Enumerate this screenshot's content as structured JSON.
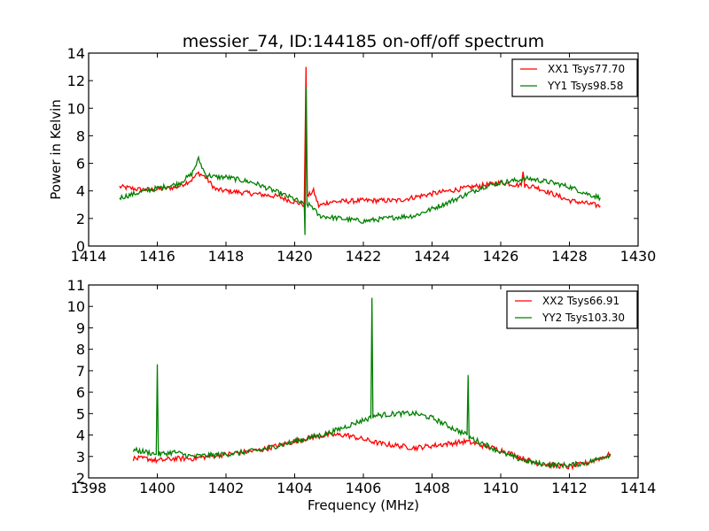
{
  "chart_data": [
    {
      "type": "line",
      "title": "messier_74, ID:144185 on-off/off spectrum",
      "xlabel": "",
      "ylabel": "Power in Kelvin",
      "xlim": [
        1414,
        1430
      ],
      "ylim": [
        0,
        14
      ],
      "xticks": [
        1414,
        1416,
        1418,
        1420,
        1422,
        1424,
        1426,
        1428,
        1430
      ],
      "yticks": [
        0,
        2,
        4,
        6,
        8,
        10,
        12,
        14
      ],
      "xtick_labels": [
        "1414",
        "1416",
        "1418",
        "1420",
        "1422",
        "1424",
        "1426",
        "1428",
        "1430"
      ],
      "ytick_labels": [
        "0",
        "2",
        "4",
        "6",
        "8",
        "10",
        "12",
        "14"
      ],
      "grid": false,
      "legend_position": "top-right",
      "series": [
        {
          "name": "XX1 Tsys77.70",
          "color": "#ff0000",
          "x": [
            1414.9,
            1415.5,
            1416.0,
            1416.6,
            1417.0,
            1417.2,
            1417.4,
            1417.7,
            1418.0,
            1418.8,
            1419.5,
            1420.0,
            1420.28,
            1420.33,
            1420.37,
            1420.55,
            1420.7,
            1421.0,
            1422.0,
            1423.0,
            1424.0,
            1424.5,
            1425.2,
            1426.0,
            1426.6,
            1426.65,
            1426.7,
            1427.0,
            1427.5,
            1428.0,
            1428.5,
            1428.9
          ],
          "y": [
            4.3,
            4.1,
            4.1,
            4.3,
            4.8,
            5.3,
            5.0,
            4.1,
            4.0,
            3.8,
            3.6,
            3.2,
            3.0,
            13.0,
            3.6,
            4.0,
            2.9,
            3.2,
            3.3,
            3.3,
            3.8,
            4.0,
            4.3,
            4.6,
            4.4,
            5.4,
            4.4,
            4.3,
            3.8,
            3.3,
            3.1,
            2.9
          ]
        },
        {
          "name": "YY1 Tsys98.58",
          "color": "#008000",
          "x": [
            1414.9,
            1415.5,
            1416.0,
            1416.6,
            1417.0,
            1417.2,
            1417.4,
            1417.7,
            1418.0,
            1418.8,
            1419.5,
            1420.0,
            1420.28,
            1420.3,
            1420.33,
            1420.36,
            1420.5,
            1420.7,
            1421.0,
            1422.0,
            1423.0,
            1423.5,
            1424.5,
            1425.5,
            1426.0,
            1426.8,
            1427.5,
            1428.0,
            1428.5,
            1428.9
          ],
          "y": [
            3.5,
            3.9,
            4.2,
            4.5,
            5.2,
            6.3,
            5.2,
            5.0,
            5.0,
            4.6,
            3.9,
            3.4,
            3.0,
            0.8,
            11.5,
            3.0,
            2.9,
            2.2,
            2.1,
            1.8,
            2.1,
            2.2,
            3.2,
            4.3,
            4.6,
            4.9,
            4.6,
            4.3,
            3.8,
            3.5
          ]
        }
      ]
    },
    {
      "type": "line",
      "title": "",
      "xlabel": "Frequency (MHz)",
      "ylabel": "",
      "xlim": [
        1398,
        1414
      ],
      "ylim": [
        2,
        11
      ],
      "xticks": [
        1398,
        1400,
        1402,
        1404,
        1406,
        1408,
        1410,
        1412,
        1414
      ],
      "yticks": [
        2,
        3,
        4,
        5,
        6,
        7,
        8,
        9,
        10,
        11
      ],
      "xtick_labels": [
        "1398",
        "1400",
        "1402",
        "1404",
        "1406",
        "1408",
        "1410",
        "1412",
        "1414"
      ],
      "ytick_labels": [
        "2",
        "3",
        "4",
        "5",
        "6",
        "7",
        "8",
        "9",
        "10",
        "11"
      ],
      "grid": false,
      "legend_position": "top-right",
      "series": [
        {
          "name": "XX2 Tsys66.91",
          "color": "#ff0000",
          "x": [
            1399.3,
            1399.7,
            1400.0,
            1400.5,
            1401.0,
            1401.5,
            1402.0,
            1403.0,
            1404.0,
            1404.5,
            1405.0,
            1405.5,
            1406.0,
            1406.5,
            1407.0,
            1407.5,
            1408.0,
            1408.5,
            1409.0,
            1409.5,
            1410.0,
            1410.5,
            1411.0,
            1411.5,
            1412.0,
            1412.5,
            1413.2
          ],
          "y": [
            2.9,
            2.9,
            2.8,
            2.9,
            2.9,
            3.0,
            3.1,
            3.3,
            3.7,
            3.9,
            4.0,
            4.0,
            3.8,
            3.6,
            3.5,
            3.4,
            3.5,
            3.6,
            3.7,
            3.5,
            3.3,
            3.0,
            2.7,
            2.6,
            2.5,
            2.7,
            3.1
          ]
        },
        {
          "name": "YY2 Tsys103.30",
          "color": "#008000",
          "x": [
            1399.3,
            1399.7,
            1399.97,
            1400.0,
            1400.03,
            1400.5,
            1401.0,
            1402.0,
            1403.0,
            1404.0,
            1404.5,
            1405.0,
            1405.5,
            1406.0,
            1406.22,
            1406.25,
            1406.28,
            1407.0,
            1407.5,
            1408.0,
            1408.5,
            1409.02,
            1409.05,
            1409.08,
            1409.5,
            1410.0,
            1410.5,
            1411.0,
            1411.5,
            1412.0,
            1412.5,
            1413.2
          ],
          "y": [
            3.3,
            3.2,
            3.1,
            7.3,
            3.1,
            3.2,
            3.0,
            3.1,
            3.3,
            3.7,
            3.9,
            4.1,
            4.4,
            4.7,
            4.8,
            10.4,
            4.9,
            5.0,
            5.0,
            4.8,
            4.4,
            4.0,
            6.8,
            3.9,
            3.6,
            3.2,
            2.9,
            2.7,
            2.6,
            2.6,
            2.7,
            3.1
          ]
        }
      ]
    }
  ]
}
